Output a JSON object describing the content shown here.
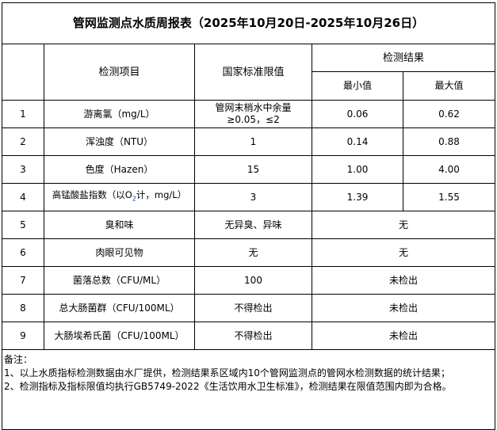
{
  "title": "管网监测点水质周报表（2025年10月20日-2025年10月26日）",
  "header": {
    "item": "检测项目",
    "standard": "国家标准限值",
    "result": "检测结果",
    "min": "最小值",
    "max": "最大值"
  },
  "rows": [
    {
      "no": "1",
      "item": "游离氯（mg/L）",
      "standard": "管网末梢水中余量≥0.05，≤2",
      "min": "0.06",
      "max": "0.62"
    },
    {
      "no": "2",
      "item": "浑浊度（NTU）",
      "standard": "1",
      "min": "0.14",
      "max": "0.88"
    },
    {
      "no": "3",
      "item": "色度（Hazen）",
      "standard": "15",
      "min": "1.00",
      "max": "4.00"
    },
    {
      "no": "4",
      "item_pre": "高锰酸盐指数（以O",
      "item_sub": "2",
      "item_post": "计，mg/L）",
      "standard": "3",
      "min": "1.39",
      "max": "1.55"
    },
    {
      "no": "5",
      "item": "臭和味",
      "standard": "无异臭、异味",
      "result": "无"
    },
    {
      "no": "6",
      "item": "肉眼可见物",
      "standard": "无",
      "result": "无"
    },
    {
      "no": "7",
      "item": "菌落总数（CFU/ML）",
      "standard": "100",
      "result": "未检出"
    },
    {
      "no": "8",
      "item": "总大肠菌群（CFU/100ML）",
      "standard": "不得检出",
      "result": "未检出"
    },
    {
      "no": "9",
      "item": "大肠埃希氏菌（CFU/100ML）",
      "standard": "不得检出",
      "result": "未检出"
    }
  ],
  "notes": {
    "label": "备注：",
    "line1": "1、以上水质指标检测数据由水厂提供，检测结果系区域内10个管网监测点的管网水检测数据的统计结果；",
    "line2": "2、检测指标及指标限值均执行GB5749-2022《生活饮用水卫生标准》，检测结果在限值范围内即为合格。"
  }
}
